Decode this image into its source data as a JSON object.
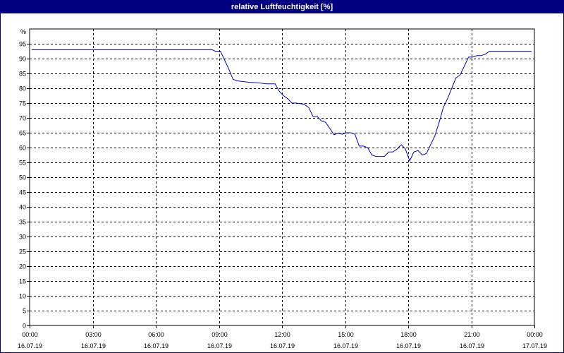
{
  "window": {
    "title": "relative Luftfeuchtigkeit [%]",
    "title_bar_color": "#000080"
  },
  "chart_data": {
    "type": "line",
    "title": "relative Luftfeuchtigkeit [%]",
    "xlabel": "",
    "ylabel": "%",
    "ylim": [
      0,
      100
    ],
    "yticks": [
      0,
      5,
      10,
      15,
      20,
      25,
      30,
      35,
      40,
      45,
      50,
      55,
      60,
      65,
      70,
      75,
      80,
      85,
      90,
      95
    ],
    "xlim": [
      0,
      24
    ],
    "xticks": [
      {
        "hour": 0,
        "time": "00:00",
        "date": "16.07.19"
      },
      {
        "hour": 3,
        "time": "03:00",
        "date": "16.07.19"
      },
      {
        "hour": 6,
        "time": "06:00",
        "date": "16.07.19"
      },
      {
        "hour": 9,
        "time": "09:00",
        "date": "16.07.19"
      },
      {
        "hour": 12,
        "time": "12:00",
        "date": "16.07.19"
      },
      {
        "hour": 15,
        "time": "15:00",
        "date": "16.07.19"
      },
      {
        "hour": 18,
        "time": "18:00",
        "date": "16.07.19"
      },
      {
        "hour": 21,
        "time": "21:00",
        "date": "16.07.19"
      },
      {
        "hour": 24,
        "time": "00:00",
        "date": "17.07.19"
      }
    ],
    "grid": true,
    "grid_style": "dashed",
    "line_color": "#0000cc",
    "series": [
      {
        "x": [
          0.1,
          8.67,
          8.83,
          9.07,
          9.27,
          9.47,
          9.67,
          9.87,
          10.07,
          10.47,
          10.87,
          11.27,
          11.67,
          11.87,
          12.07,
          12.27,
          12.47,
          12.67,
          12.87,
          13.07,
          13.27,
          13.47,
          13.67,
          13.87,
          14.07,
          14.27,
          14.47,
          14.67,
          14.87,
          15.07,
          15.27,
          15.47,
          15.67,
          15.87,
          16.07,
          16.27,
          16.47,
          16.67,
          16.87,
          17.07,
          17.27,
          17.47,
          17.67,
          17.87,
          18.07,
          18.27,
          18.47,
          18.67,
          18.87,
          19.07,
          19.27,
          19.47,
          19.67,
          19.87,
          20.07,
          20.27,
          20.47,
          20.67,
          20.87,
          21.07,
          21.27,
          21.47,
          21.67,
          21.87,
          22.07,
          22.27,
          22.67,
          23.07,
          23.47,
          23.87
        ],
        "y": [
          93,
          93,
          92.5,
          92.5,
          89.5,
          86.5,
          83,
          82.5,
          82.3,
          82,
          81.8,
          81.5,
          81.5,
          79,
          77.5,
          76.5,
          75,
          75,
          74.8,
          74.5,
          73.5,
          70.5,
          70.5,
          69,
          68.5,
          66.5,
          64.3,
          64.8,
          64.5,
          65,
          65,
          64.5,
          60.5,
          60.5,
          60,
          57.5,
          57,
          57,
          57,
          58.5,
          58.5,
          59.5,
          61,
          59.5,
          55.5,
          58.5,
          59,
          57.5,
          58,
          61,
          64,
          68.5,
          73.5,
          76.5,
          80,
          83.5,
          84.5,
          87.5,
          90.5,
          90.5,
          91,
          91,
          91.5,
          92.5,
          92.5,
          92.5,
          92.5,
          92.5,
          92.5,
          92.5
        ]
      }
    ]
  }
}
